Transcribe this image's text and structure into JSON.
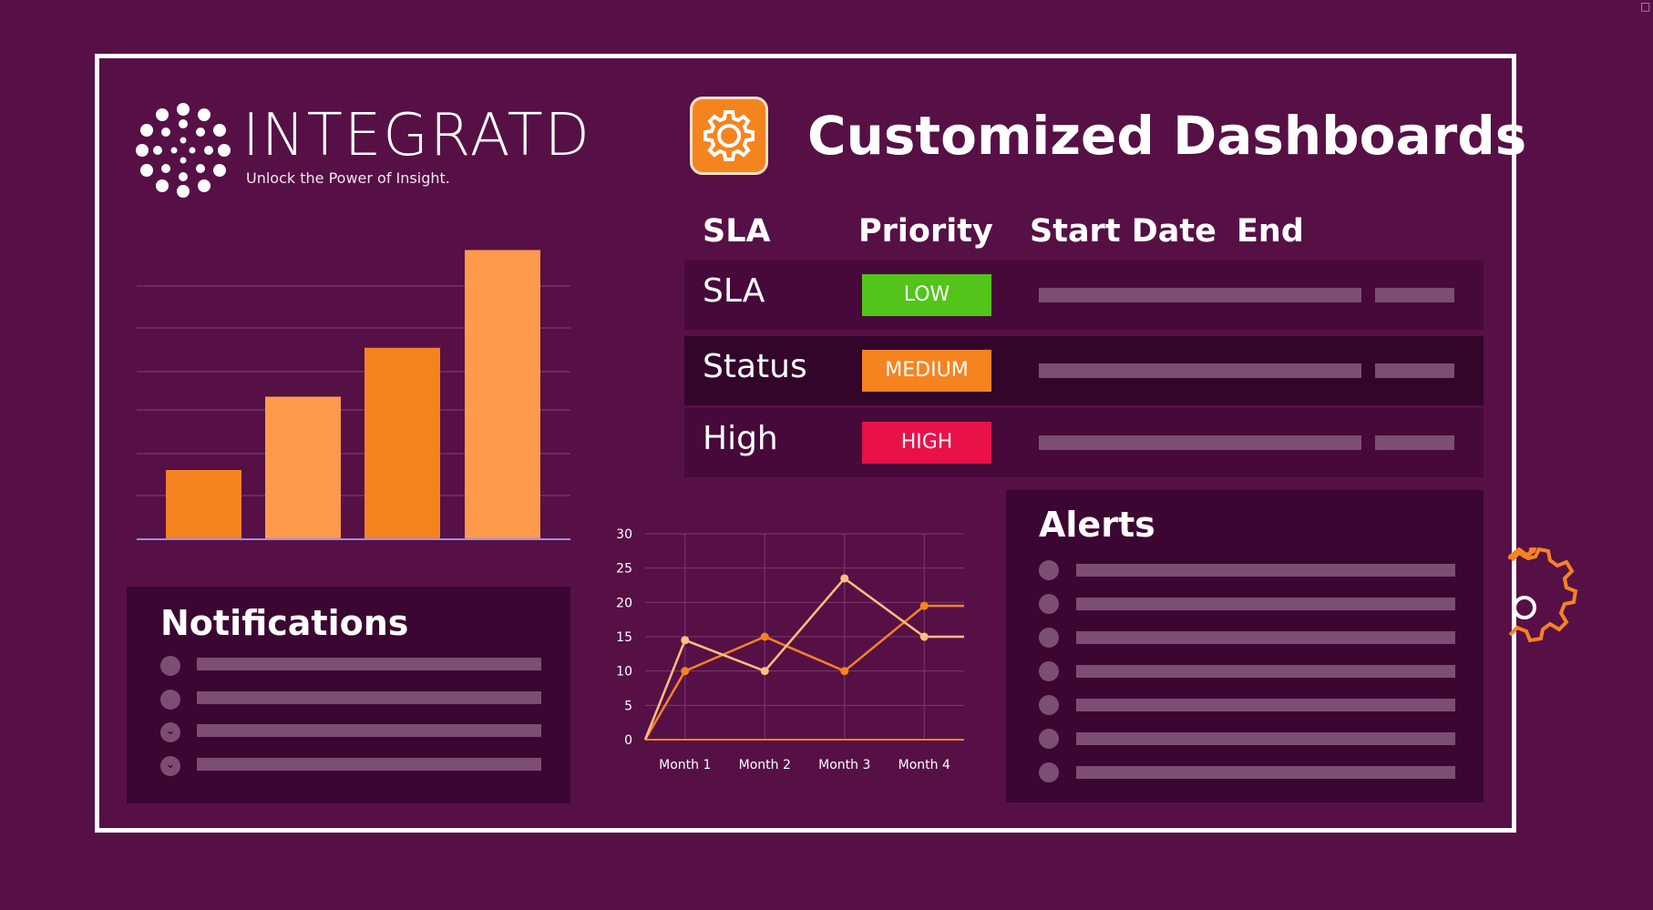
{
  "brand": {
    "name": "INTEGRATD",
    "tagline": "Unlock the Power of Insight.",
    "logo_icon": "network-dots-logo"
  },
  "header": {
    "title": "Customized Dashboards",
    "icon": "gear-icon"
  },
  "table": {
    "columns": [
      "SLA",
      "Priority",
      "Start Date",
      "End"
    ],
    "rows": [
      {
        "name": "SLA",
        "priority": "LOW",
        "priority_color": "#52c41a"
      },
      {
        "name": "Status",
        "priority": "MEDIUM",
        "priority_color": "#f58320"
      },
      {
        "name": "High",
        "priority": "HIGH",
        "priority_color": "#e8114a"
      }
    ]
  },
  "notifications": {
    "title": "Notifications",
    "items": [
      {
        "icon": "circle-icon"
      },
      {
        "icon": "circle-icon"
      },
      {
        "icon": "chevron-down-icon"
      },
      {
        "icon": "chevron-down-icon"
      }
    ]
  },
  "alerts": {
    "title": "Alerts",
    "item_count": 7
  },
  "colors": {
    "background": "#561046",
    "accent_orange": "#f58320",
    "accent_light_orange": "#ff9a4d",
    "panel": "#3c0632",
    "placeholder_bar": "#7d4e73"
  },
  "chart_data": [
    {
      "type": "bar",
      "categories": [
        "",
        "",
        "",
        ""
      ],
      "values": [
        17,
        35,
        47,
        71
      ],
      "ylim": [
        0,
        72
      ],
      "grid": true,
      "colors": [
        "#f58320",
        "#ff9a4d",
        "#f58320",
        "#ff9a4d"
      ]
    },
    {
      "type": "line",
      "categories": [
        "Month 1",
        "Month 2",
        "Month 3",
        "Month 4"
      ],
      "yticks": [
        0,
        5,
        10,
        15,
        20,
        25,
        30
      ],
      "ylim": [
        0,
        30
      ],
      "grid": true,
      "series": [
        {
          "values": [
            0,
            10,
            15,
            10,
            19.5,
            19.5
          ],
          "x": [
            0.5,
            1,
            2,
            3,
            4,
            4.5
          ],
          "color": "#f58320"
        },
        {
          "values": [
            0,
            14.5,
            10,
            23.5,
            15,
            15
          ],
          "x": [
            0.5,
            1,
            2,
            3,
            4,
            4.5
          ],
          "color": "#ffbf80"
        }
      ]
    }
  ]
}
